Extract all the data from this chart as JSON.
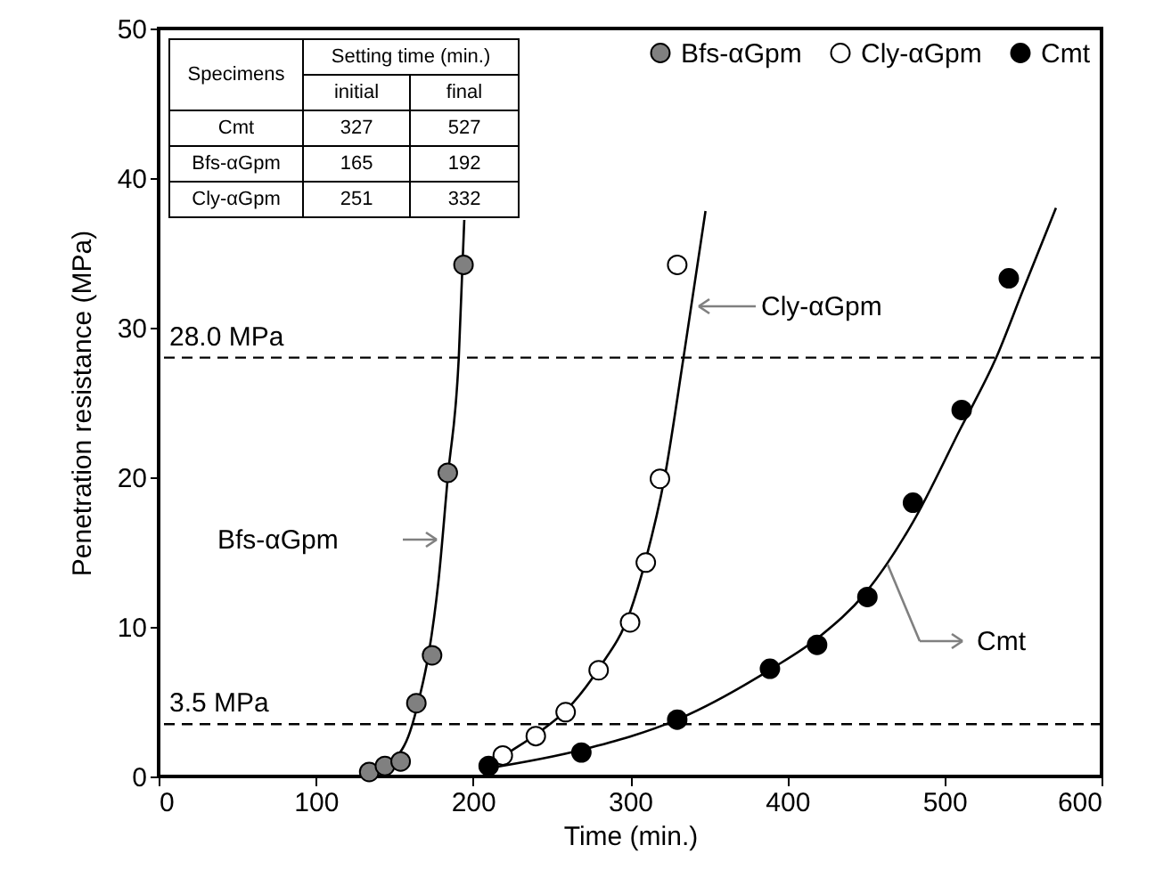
{
  "chart_data": {
    "type": "scatter",
    "xlabel": "Time (min.)",
    "ylabel": "Penetration resistance (MPa)",
    "xlim": [
      0,
      600
    ],
    "xticks": [
      0,
      100,
      200,
      300,
      400,
      500,
      600
    ],
    "ylim": [
      0,
      50
    ],
    "yticks": [
      0,
      10,
      20,
      30,
      40,
      50
    ],
    "grid": false,
    "legend": "top right",
    "marker": "circle",
    "series": [
      {
        "name": "Bfs-αGpm",
        "color": "#808080",
        "x": [
          134,
          144,
          154,
          164,
          174,
          184,
          194
        ],
        "values": [
          0.3,
          0.7,
          1.0,
          4.9,
          8.1,
          20.3,
          34.2
        ]
      },
      {
        "name": "Cly-αGpm",
        "color": "#ffffff",
        "x": [
          219,
          240,
          259,
          280,
          300,
          310,
          319,
          330
        ],
        "values": [
          1.4,
          2.7,
          4.3,
          7.1,
          10.3,
          14.3,
          19.9,
          34.2
        ]
      },
      {
        "name": "Cmt",
        "color": "#000000",
        "x": [
          210,
          269,
          330,
          389,
          419,
          451,
          480,
          511,
          541
        ],
        "values": [
          0.7,
          1.6,
          3.8,
          7.2,
          8.8,
          12.0,
          18.3,
          24.5,
          33.3
        ]
      },
      {
        "type": "line",
        "marker": "none",
        "color": "#000000",
        "x": [
          128,
          140,
          150,
          160,
          166,
          172,
          178,
          184,
          191,
          194.5
        ],
        "values": [
          0,
          0.4,
          1.1,
          3.0,
          5.3,
          8.3,
          13.0,
          20.0,
          28.0,
          37.2
        ]
      },
      {
        "type": "line",
        "marker": "none",
        "color": "#000000",
        "x": [
          208,
          220,
          240,
          260,
          280,
          300,
          310,
          322,
          334,
          348
        ],
        "values": [
          0.5,
          1.4,
          2.8,
          4.5,
          7.2,
          11.0,
          14.5,
          20.0,
          28.0,
          37.8
        ]
      },
      {
        "type": "line",
        "marker": "none",
        "color": "#000000",
        "x": [
          207,
          270,
          330,
          390,
          420,
          450,
          480,
          510,
          533,
          550,
          571
        ],
        "values": [
          0.5,
          1.8,
          3.8,
          7.2,
          9.3,
          12.3,
          17.0,
          23.2,
          28.0,
          32.5,
          38.0
        ]
      }
    ],
    "ref_lines": [
      {
        "axis": "y",
        "value": 28.0,
        "label": "28.0 MPa",
        "color": "#000000",
        "line_style": "dashed"
      },
      {
        "axis": "y",
        "value": 3.5,
        "label": "3.5 MPa",
        "color": "#000000",
        "line_style": "dashed"
      }
    ],
    "annotations": [
      "Bfs-αGpm",
      "Cly-αGpm",
      "Cmt",
      "Specimens",
      "Setting time (min.)",
      "initial",
      "final",
      "Cmt",
      "327",
      "527",
      "Bfs-αGpm",
      "165",
      "192",
      "Cly-αGpm",
      "251",
      "332"
    ]
  }
}
